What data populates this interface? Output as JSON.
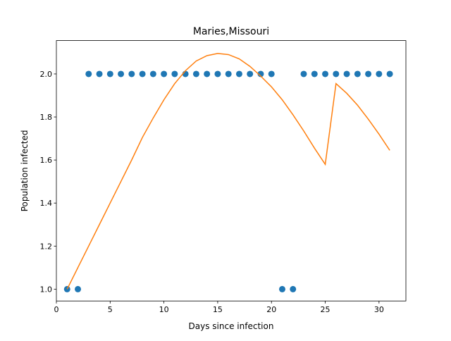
{
  "chart_data": {
    "type": "scatter",
    "title": "Maries,Missouri",
    "xlabel": "Days since infection",
    "ylabel": "Population infected",
    "xlim": [
      0.0,
      32.5
    ],
    "ylim": [
      0.945,
      2.155
    ],
    "xticks": [
      0,
      5,
      10,
      15,
      20,
      25,
      30
    ],
    "xtick_labels": [
      "0",
      "5",
      "10",
      "15",
      "20",
      "25",
      "30"
    ],
    "yticks": [
      1.0,
      1.2,
      1.4,
      1.6,
      1.8,
      2.0
    ],
    "ytick_labels": [
      "1.0",
      "1.2",
      "1.4",
      "1.6",
      "1.8",
      "2.0"
    ],
    "grid": false,
    "series": [
      {
        "kind": "scatter",
        "color": "#1f77b4",
        "x": [
          1,
          2,
          3,
          4,
          5,
          6,
          7,
          8,
          9,
          10,
          11,
          12,
          13,
          14,
          15,
          16,
          17,
          18,
          19,
          20,
          21,
          22,
          23,
          24,
          25,
          26,
          27,
          28,
          29,
          30,
          31
        ],
        "y": [
          1,
          1,
          2,
          2,
          2,
          2,
          2,
          2,
          2,
          2,
          2,
          2,
          2,
          2,
          2,
          2,
          2,
          2,
          2,
          2,
          1,
          1,
          2,
          2,
          2,
          2,
          2,
          2,
          2,
          2,
          2
        ]
      },
      {
        "kind": "line",
        "color": "#ff7f0e",
        "x": [
          1,
          2,
          3,
          4,
          5,
          6,
          7,
          8,
          9,
          10,
          11,
          12,
          13,
          14,
          15,
          16,
          17,
          18,
          19,
          20,
          21,
          22,
          23,
          24,
          25,
          26,
          27,
          28,
          29,
          30,
          31
        ],
        "y": [
          1.0,
          1.1,
          1.2,
          1.3,
          1.4,
          1.5,
          1.6,
          1.705,
          1.795,
          1.88,
          1.955,
          2.015,
          2.06,
          2.085,
          2.095,
          2.09,
          2.07,
          2.035,
          1.99,
          1.94,
          1.88,
          1.81,
          1.735,
          1.655,
          1.58,
          1.955,
          1.91,
          1.855,
          1.79,
          1.72,
          1.645
        ]
      }
    ]
  }
}
